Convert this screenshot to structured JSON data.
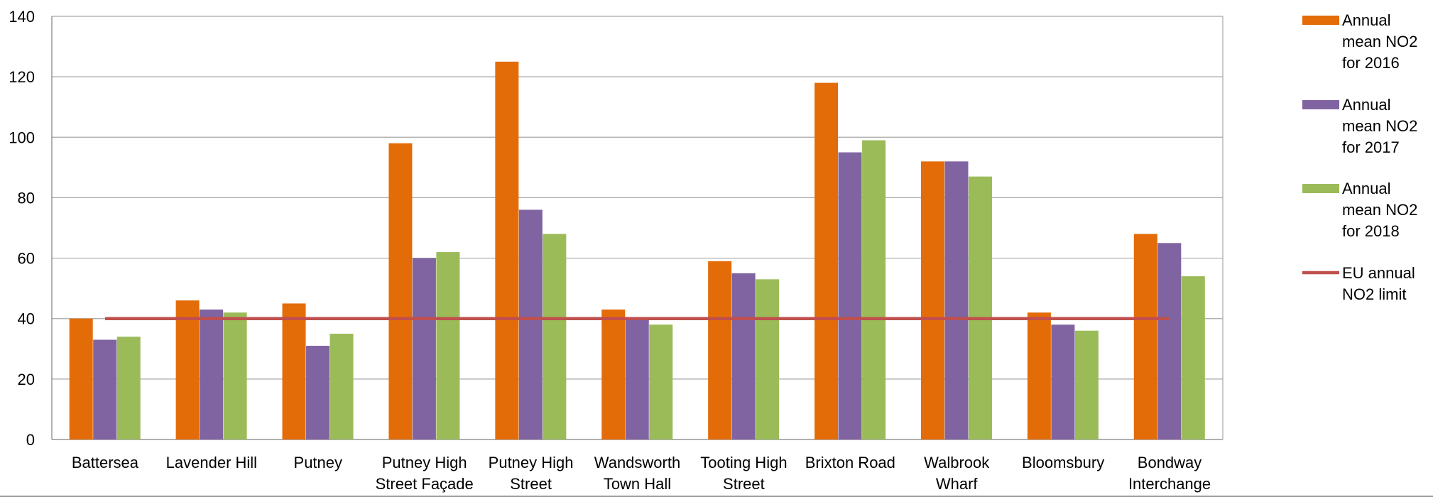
{
  "chart_data": {
    "type": "bar",
    "categories": [
      [
        "Battersea"
      ],
      [
        "Lavender Hill"
      ],
      [
        "Putney"
      ],
      [
        "Putney High",
        "Street Façade"
      ],
      [
        "Putney High",
        "Street"
      ],
      [
        "Wandsworth",
        "Town Hall"
      ],
      [
        "Tooting High",
        "Street"
      ],
      [
        "Brixton Road"
      ],
      [
        "Walbrook",
        "Wharf"
      ],
      [
        "Bloomsbury"
      ],
      [
        "Bondway",
        "Interchange"
      ]
    ],
    "series": [
      {
        "name": [
          "Annual",
          "mean NO2",
          "for 2016"
        ],
        "color": "#E36C09",
        "values": [
          40,
          46,
          45,
          98,
          125,
          43,
          59,
          118,
          92,
          42,
          68
        ]
      },
      {
        "name": [
          "Annual",
          "mean NO2",
          "for 2017"
        ],
        "color": "#8064A2",
        "values": [
          33,
          43,
          31,
          60,
          76,
          40,
          55,
          95,
          92,
          38,
          65
        ]
      },
      {
        "name": [
          "Annual",
          "mean NO2",
          "for 2018"
        ],
        "color": "#9BBB59",
        "values": [
          34,
          42,
          35,
          62,
          68,
          38,
          53,
          99,
          87,
          36,
          54
        ]
      }
    ],
    "limit_line": {
      "name": [
        "EU annual",
        "NO2 limit"
      ],
      "value": 40,
      "color": "#C0504D"
    },
    "ylim": [
      0,
      140
    ],
    "yticks": [
      0,
      20,
      40,
      60,
      80,
      100,
      120,
      140
    ],
    "grid": true,
    "legend": "right",
    "title": "",
    "xlabel": "",
    "ylabel": ""
  }
}
